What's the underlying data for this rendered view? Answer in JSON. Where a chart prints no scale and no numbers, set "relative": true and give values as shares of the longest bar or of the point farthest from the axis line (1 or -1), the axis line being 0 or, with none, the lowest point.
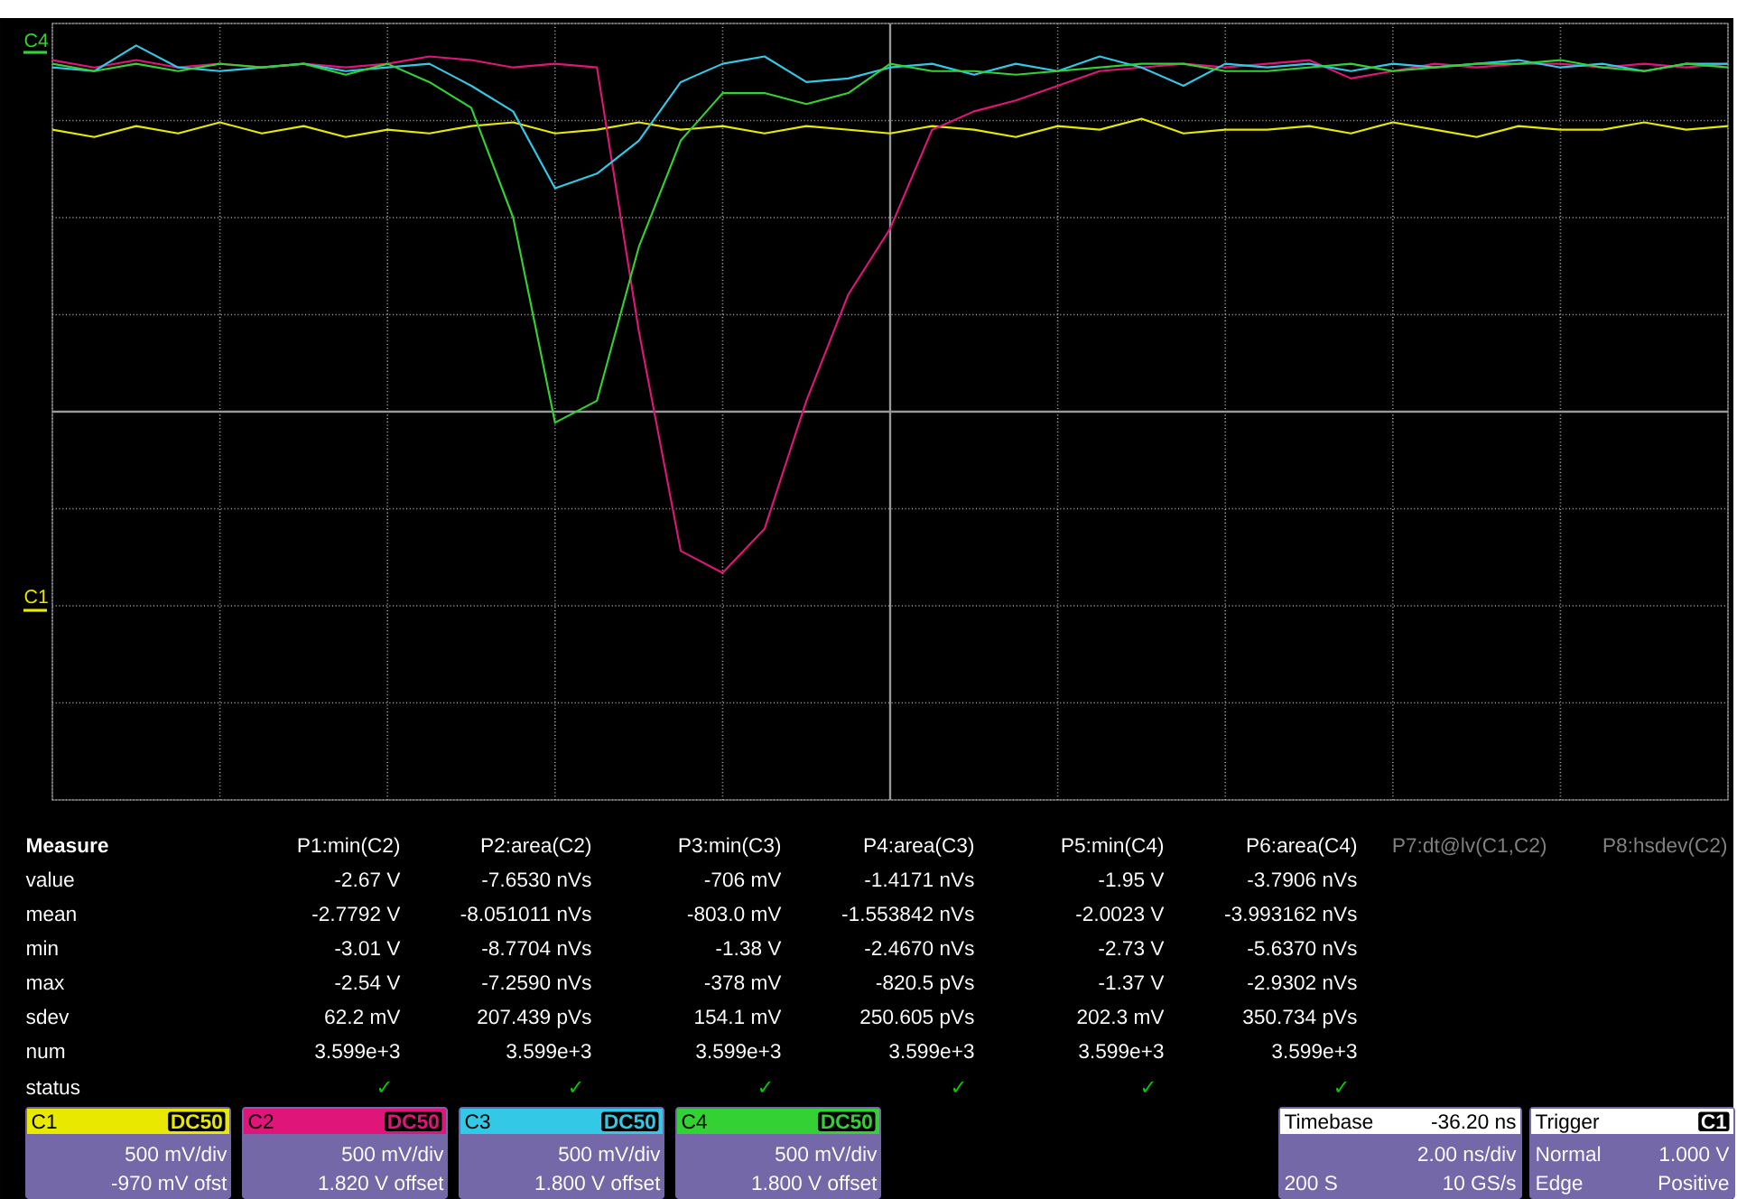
{
  "chart_data": {
    "type": "line",
    "relative": true,
    "grid": true,
    "legend": "bottom",
    "categories": [
      null,
      null,
      null,
      null,
      null,
      null,
      null,
      null,
      null,
      null,
      null,
      null,
      null,
      null,
      null,
      null,
      null,
      null,
      null,
      null,
      null,
      null,
      null,
      null,
      null,
      null,
      null,
      null,
      null,
      null,
      null,
      null,
      null,
      null,
      null,
      null,
      null,
      null,
      null,
      null,
      null
    ],
    "series": [
      {
        "name": "C1",
        "color": "#e8e800",
        "values": [
          0.77,
          0.75,
          0.78,
          0.76,
          0.79,
          0.76,
          0.78,
          0.75,
          0.77,
          0.76,
          0.78,
          0.79,
          0.76,
          0.77,
          0.79,
          0.77,
          0.78,
          0.76,
          0.78,
          0.77,
          0.76,
          0.78,
          0.77,
          0.75,
          0.78,
          0.77,
          0.8,
          0.76,
          0.77,
          0.77,
          0.78,
          0.76,
          0.79,
          0.77,
          0.75,
          0.78,
          0.77,
          0.77,
          0.79,
          0.77,
          0.78
        ]
      },
      {
        "name": "C2",
        "color": "#e0157a",
        "values": [
          0.96,
          0.94,
          0.96,
          0.94,
          0.95,
          0.94,
          0.95,
          0.94,
          0.95,
          0.97,
          0.96,
          0.94,
          0.95,
          0.94,
          0.22,
          -0.38,
          -0.44,
          -0.32,
          0.03,
          0.32,
          0.5,
          0.77,
          0.82,
          0.85,
          0.89,
          0.93,
          0.94,
          0.95,
          0.94,
          0.95,
          0.96,
          0.91,
          0.93,
          0.95,
          0.94,
          0.95,
          0.95,
          0.94,
          0.95,
          0.94,
          0.95
        ]
      },
      {
        "name": "C3",
        "color": "#33c8e6",
        "values": [
          0.94,
          0.93,
          1.0,
          0.94,
          0.93,
          0.94,
          0.95,
          0.93,
          0.94,
          0.95,
          0.89,
          0.82,
          0.61,
          0.65,
          0.74,
          0.9,
          0.95,
          0.97,
          0.9,
          0.91,
          0.94,
          0.95,
          0.92,
          0.95,
          0.93,
          0.97,
          0.94,
          0.89,
          0.95,
          0.94,
          0.95,
          0.93,
          0.95,
          0.94,
          0.95,
          0.96,
          0.94,
          0.95,
          0.93,
          0.95,
          0.95
        ]
      },
      {
        "name": "C4",
        "color": "#33d133",
        "values": [
          0.95,
          0.93,
          0.95,
          0.93,
          0.95,
          0.94,
          0.95,
          0.92,
          0.95,
          0.9,
          0.83,
          0.53,
          -0.03,
          0.03,
          0.45,
          0.74,
          0.87,
          0.87,
          0.84,
          0.87,
          0.95,
          0.93,
          0.93,
          0.92,
          0.93,
          0.94,
          0.95,
          0.95,
          0.93,
          0.93,
          0.94,
          0.95,
          0.93,
          0.94,
          0.95,
          0.95,
          0.96,
          0.94,
          0.93,
          0.95,
          0.94
        ]
      }
    ],
    "annotations": [
      "Measure",
      "P1:min(C2)",
      "P2:area(C2)",
      "P3:min(C3)",
      "P4:area(C3)",
      "P5:min(C4)",
      "P6:area(C4)",
      "P7:dt@lv(C1,C2)",
      "P8:hsdev(C2)",
      "value",
      "-2.67 V",
      "-7.6530 nVs",
      "-706 mV",
      "-1.4171 nVs",
      "-1.95 V",
      "-3.7906 nVs",
      "mean",
      "-2.7792 V",
      "-8.051011 nVs",
      "-803.0 mV",
      "-1.553842 nVs",
      "-2.0023 V",
      "-3.993162 nVs",
      "min",
      "-3.01 V",
      "-8.7704 nVs",
      "-1.38 V",
      "-2.4670 nVs",
      "-2.73 V",
      "-5.6370 nVs",
      "max",
      "-2.54 V",
      "-7.2590 nVs",
      "-378 mV",
      "-820.5 pVs",
      "-1.37 V",
      "-2.9302 nVs",
      "sdev",
      "62.2 mV",
      "207.439 pVs",
      "154.1 mV",
      "250.605 pVs",
      "202.3 mV",
      "350.734 pVs",
      "num",
      "3.599e+3",
      "3.599e+3",
      "3.599e+3",
      "3.599e+3",
      "3.599e+3",
      "3.599e+3",
      "status",
      "✓",
      "✓",
      "✓",
      "✓",
      "✓",
      "✓",
      "DC50",
      "500 mV/div",
      "-970 mV ofst",
      "DC50",
      "500 mV/div",
      "1.820 V offset",
      "DC50",
      "500 mV/div",
      "1.800 V offset",
      "DC50",
      "500 mV/div",
      "1.800 V offset",
      "Timebase",
      "-36.20 ns",
      "2.00 ns/div",
      "200 S",
      "10 GS/s",
      "Trigger",
      "C1",
      "Normal",
      "1.000 V",
      "Edge",
      "Positive",
      "C4",
      "C1"
    ]
  }
}
